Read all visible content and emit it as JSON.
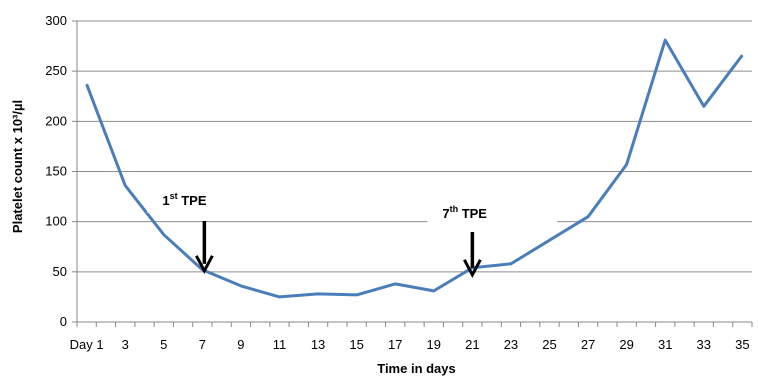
{
  "chart_data": {
    "type": "line",
    "xlabel": "Time in days",
    "ylabel": "Platelet count x 10³/µl",
    "ylim": [
      0,
      300
    ],
    "yticks": [
      0,
      50,
      100,
      150,
      200,
      250,
      300
    ],
    "grid": true,
    "legend": "none",
    "categories": [
      "Day 1",
      "2",
      "3",
      "4",
      "5",
      "6",
      "7",
      "8",
      "9",
      "10",
      "11",
      "12",
      "13",
      "14",
      "15",
      "16",
      "17",
      "18",
      "19",
      "20",
      "21",
      "22",
      "23",
      "24",
      "25",
      "26",
      "27",
      "28",
      "29",
      "30",
      "31",
      "32",
      "33",
      "34",
      "35"
    ],
    "tick_labels": [
      "Day 1",
      "3",
      "5",
      "7",
      "9",
      "11",
      "13",
      "15",
      "17",
      "19",
      "21",
      "23",
      "25",
      "27",
      "29",
      "31",
      "33",
      "35"
    ],
    "series": [
      {
        "x": [
          1,
          3,
          5,
          7,
          9,
          11,
          13,
          15,
          17,
          19,
          21,
          23,
          27,
          29,
          31,
          33,
          35
        ],
        "values": [
          237,
          136,
          87,
          52,
          36,
          25,
          28,
          27,
          38,
          31,
          54,
          58,
          105,
          157,
          281,
          215,
          266
        ],
        "color": "#4a7ebb"
      }
    ],
    "annotations": [
      {
        "text": "1",
        "superscript": "st",
        "suffix": " TPE",
        "day": 7,
        "arrow_tip_value": 52
      },
      {
        "text": "7",
        "superscript": "th",
        "suffix": " TPE",
        "day": 21,
        "arrow_tip_value": 48
      }
    ]
  }
}
